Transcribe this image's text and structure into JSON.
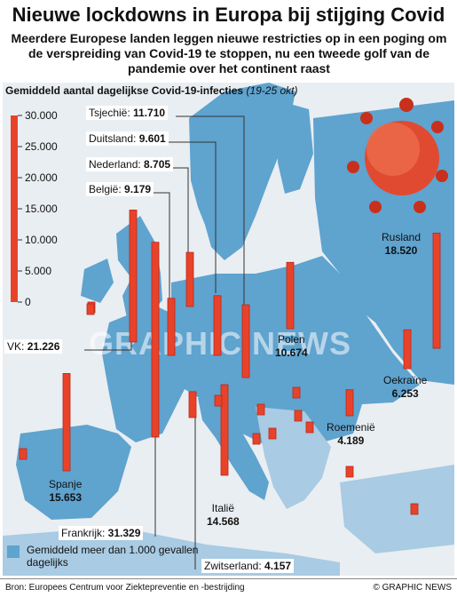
{
  "header": {
    "title": "Nieuwe lockdowns in Europa bij stijging Covid",
    "subtitle": "Meerdere Europese landen leggen nieuwe restricties op in een poging om de verspreiding van Covid-19 te stoppen, nu een tweede golf van de pandemie over het continent raast"
  },
  "chart_heading": {
    "label": "Gemiddeld aantal dagelijkse Covid-19-infecties",
    "period": "(19-25 okt)"
  },
  "chart_data": {
    "type": "bar",
    "title": "Gemiddeld aantal dagelijkse Covid-19-infecties",
    "period": "(19-25 okt)",
    "ylim": [
      0,
      30000
    ],
    "yticks": [
      "30.000",
      "25.000",
      "20.000",
      "15.000",
      "10.000",
      "5.000",
      "0"
    ],
    "series": [
      {
        "key": "tsjechie",
        "label": "Tsjechië",
        "value_text": "11.710",
        "value": 11710
      },
      {
        "key": "duitsland",
        "label": "Duitsland",
        "value_text": "9.601",
        "value": 9601
      },
      {
        "key": "nederland",
        "label": "Nederland",
        "value_text": "8.705",
        "value": 8705
      },
      {
        "key": "belgie",
        "label": "België",
        "value_text": "9.179",
        "value": 9179
      },
      {
        "key": "vk",
        "label": "VK",
        "value_text": "21.226",
        "value": 21226
      },
      {
        "key": "frankrijk",
        "label": "Frankrijk",
        "value_text": "31.329",
        "value": 31329
      },
      {
        "key": "spanje",
        "label": "Spanje",
        "value_text": "15.653",
        "value": 15653
      },
      {
        "key": "italie",
        "label": "Italië",
        "value_text": "14.568",
        "value": 14568
      },
      {
        "key": "zwitserland",
        "label": "Zwitserland",
        "value_text": "4.157",
        "value": 4157
      },
      {
        "key": "polen",
        "label": "Polen",
        "value_text": "10.674",
        "value": 10674
      },
      {
        "key": "oekraine",
        "label": "Oekraïne",
        "value_text": "6.253",
        "value": 6253
      },
      {
        "key": "roemenie",
        "label": "Roemenië",
        "value_text": "4.189",
        "value": 4189
      },
      {
        "key": "rusland",
        "label": "Rusland",
        "value_text": "18.520",
        "value": 18520
      }
    ]
  },
  "legend": {
    "label": "Gemiddeld meer dan 1.000 gevallen dagelijks"
  },
  "footer": {
    "source": "Bron: Europees Centrum voor Ziektepreventie en -bestrijding",
    "credit": "© GRAPHIC NEWS"
  },
  "watermark": "GRAPHIC NEWS",
  "colors": {
    "bar": "#e8432a",
    "bar_stroke": "#b8281a",
    "sea": "#e9eef2",
    "land_highlight": "#5fa3cf",
    "land_other": "#a9cbe3",
    "leader": "#333333"
  }
}
